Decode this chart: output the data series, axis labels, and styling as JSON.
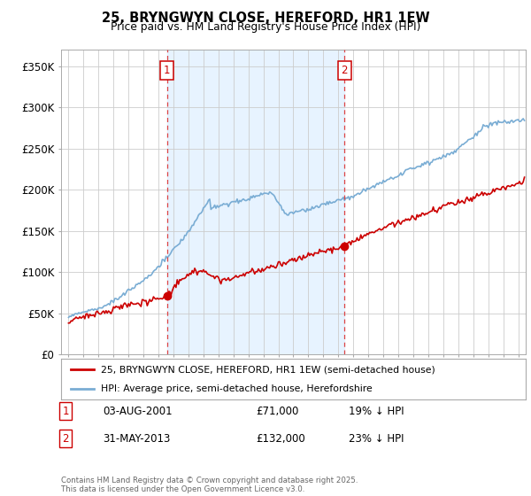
{
  "title": "25, BRYNGWYN CLOSE, HEREFORD, HR1 1EW",
  "subtitle": "Price paid vs. HM Land Registry's House Price Index (HPI)",
  "ylabel_ticks": [
    "£0",
    "£50K",
    "£100K",
    "£150K",
    "£200K",
    "£250K",
    "£300K",
    "£350K"
  ],
  "ytick_values": [
    0,
    50000,
    100000,
    150000,
    200000,
    250000,
    300000,
    350000
  ],
  "ylim": [
    0,
    370000
  ],
  "xlim_start": 1994.5,
  "xlim_end": 2025.5,
  "sale1_year": 2001.58,
  "sale1_price": 71000,
  "sale2_year": 2013.41,
  "sale2_price": 132000,
  "legend_label_red": "25, BRYNGWYN CLOSE, HEREFORD, HR1 1EW (semi-detached house)",
  "legend_label_blue": "HPI: Average price, semi-detached house, Herefordshire",
  "footer": "Contains HM Land Registry data © Crown copyright and database right 2025.\nThis data is licensed under the Open Government Licence v3.0.",
  "background_color": "#ffffff",
  "plot_bg_color": "#ffffff",
  "grid_color": "#cccccc",
  "red_color": "#cc0000",
  "blue_color": "#7aadd4",
  "shade_color": "#ddeeff",
  "dashed_color": "#dd4444"
}
